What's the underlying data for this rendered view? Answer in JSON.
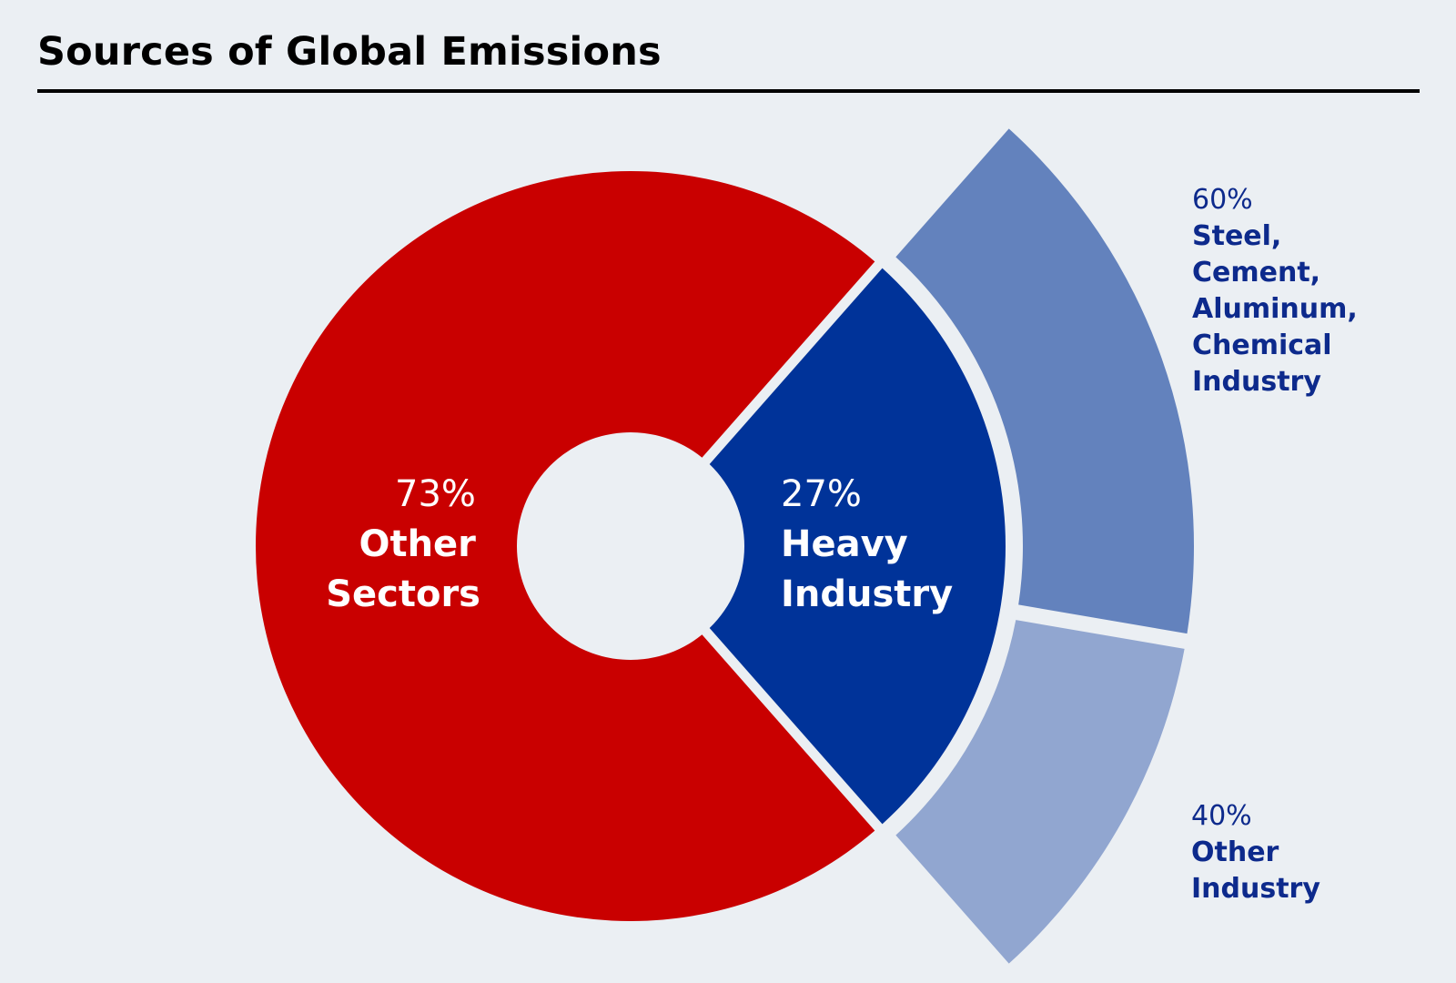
{
  "title": "Sources of Global Emissions",
  "colors": {
    "background": "#ebeff3",
    "other_sectors": "#c90000",
    "heavy_industry": "#003399",
    "steel_cement_aluminum_chemical": "#6382bd",
    "other_industry": "#91a6d0",
    "inner_label": "#ffffff",
    "outer_label": "#0d2a8c"
  },
  "chart_data": {
    "type": "pie",
    "title": "Sources of Global Emissions",
    "inner_ring": [
      {
        "pct_label": "73%",
        "name_lines": [
          "Other",
          "Sectors"
        ],
        "value": 73,
        "color": "#c90000"
      },
      {
        "pct_label": "27%",
        "name_lines": [
          "Heavy",
          "Industry"
        ],
        "value": 27,
        "color": "#003399"
      }
    ],
    "outer_breakdown": {
      "of": "Heavy Industry",
      "segments": [
        {
          "pct_label": "60%",
          "name_lines": [
            "Steel,",
            "Cement,",
            "Aluminum,",
            "Chemical",
            "Industry"
          ],
          "value": 60,
          "color": "#6382bd"
        },
        {
          "pct_label": "40%",
          "name_lines": [
            "Other",
            "Industry"
          ],
          "value": 40,
          "color": "#91a6d0"
        }
      ]
    }
  }
}
